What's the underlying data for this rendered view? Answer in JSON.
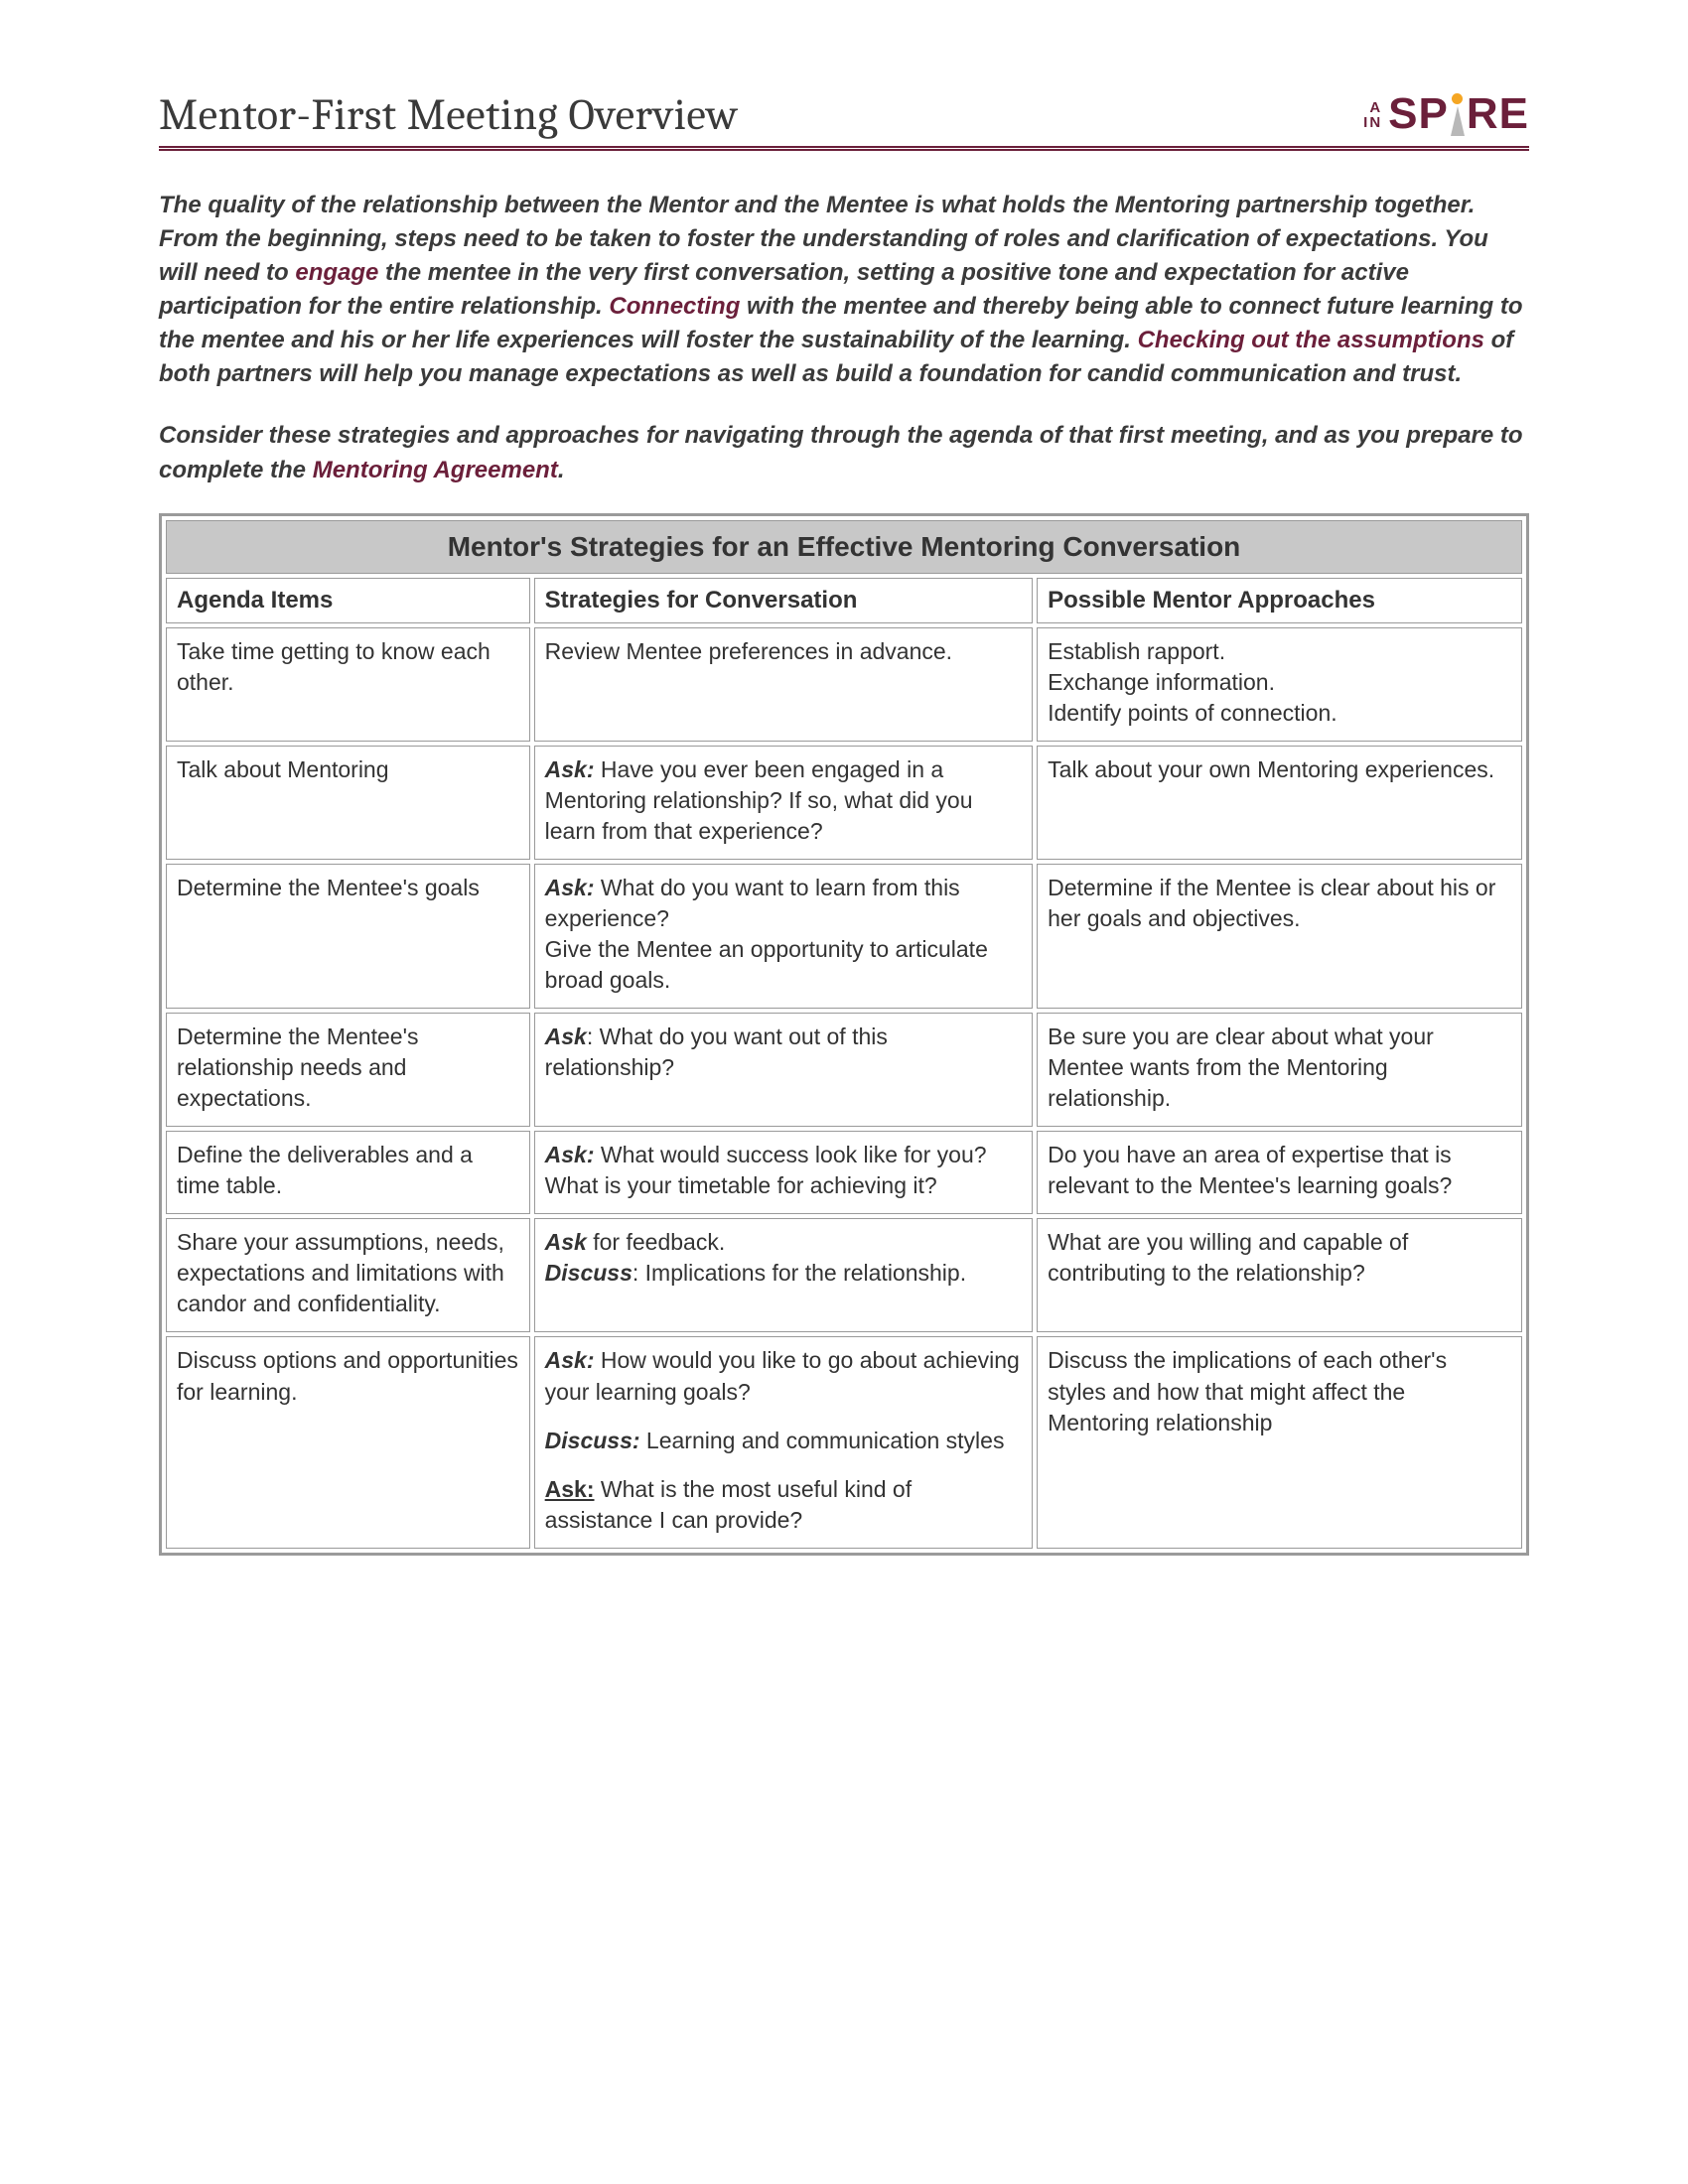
{
  "page": {
    "title": "Mentor-First Meeting Overview",
    "logo": {
      "prefix_line1": "A",
      "prefix_line2": "IN",
      "sp": "SP",
      "re": "RE"
    }
  },
  "colors": {
    "brand": "#6b1f3a",
    "accent": "#f5a623",
    "text": "#3a3a3a",
    "rule": "#9a9a9a",
    "title_bg": "#c8c8c8"
  },
  "intro": {
    "p1a": "The quality of the relationship between the Mentor and the Mentee is what holds the Mentoring partnership together. From the beginning, steps need to be taken to foster the understanding of roles and clarification of expectations. You will need to ",
    "hl1": "engage",
    "p1b": " the mentee in the very first conversation, setting a positive tone and expectation for active participation for the entire relationship. ",
    "hl2": "Connecting",
    "p1c": " with the mentee and thereby being able to connect future learning to the mentee and his or her life experiences will foster the sustainability of the learning. ",
    "hl3": "Checking out the assumptions",
    "p1d": " of both partners will help you manage expectations as well as build a foundation for candid communication and trust.",
    "p2a": "Consider these strategies and approaches for navigating through the agenda of that first meeting, and as you prepare to complete the  ",
    "hl4": "Mentoring Agreement",
    "p2b": "."
  },
  "table": {
    "title": "Mentor's Strategies for an Effective Mentoring Conversation",
    "columns": [
      "Agenda Items",
      "Strategies for Conversation",
      "Possible Mentor Approaches"
    ],
    "rows": [
      {
        "agenda": "Take time getting to know each other.",
        "strategy_plain": "Review Mentee preferences in advance.",
        "approach": "Establish rapport.\nExchange information.\nIdentify points of connection."
      },
      {
        "agenda": "Talk about Mentoring",
        "ask": "Ask:",
        "strategy_after_ask": " Have you ever been engaged in a Mentoring relationship? If so, what did you learn from that experience?",
        "approach": "Talk about your own Mentoring experiences."
      },
      {
        "agenda": "Determine the Mentee's goals",
        "ask": "Ask:",
        "strategy_after_ask": " What do you want to learn from this experience?",
        "strategy_line2": "Give the Mentee an opportunity to articulate broad goals.",
        "approach": "Determine if the Mentee is clear about his or her goals and objectives."
      },
      {
        "agenda": "Determine the Mentee's relationship needs and expectations.",
        "ask_nc": "Ask",
        "strategy_after_ask": ": What do you want out of this relationship?",
        "approach": "Be sure you are clear about what your Mentee wants from the Mentoring relationship."
      },
      {
        "agenda": "Define the deliverables and a time table.",
        "ask": "Ask:",
        "strategy_after_ask": " What would success look like for you? What is your timetable for achieving it?",
        "approach": "Do you have an area of expertise that is relevant to the Mentee's learning goals?"
      },
      {
        "agenda": "Share your assumptions, needs, expectations and limitations with candor and confidentiality.",
        "ask_nc": "Ask",
        "strategy_after_ask": " for feedback.",
        "discuss_nc": "Discuss",
        "strategy_after_discuss": ": Implications for the relationship.",
        "approach": "What are you willing and capable of contributing to the relationship?"
      },
      {
        "agenda": "Discuss options and opportunities for learning.",
        "ask": "Ask:",
        "strategy_after_ask": " How would you like to go about achieving your learning goals?",
        "discuss": "Discuss:",
        "strategy_after_discuss": " Learning and communication styles",
        "ask2_u": "Ask:",
        "strategy_after_ask2": " What is the most useful kind of assistance I can provide?",
        "approach": "Discuss the implications of each other's styles and how that might affect the Mentoring relationship"
      }
    ]
  }
}
